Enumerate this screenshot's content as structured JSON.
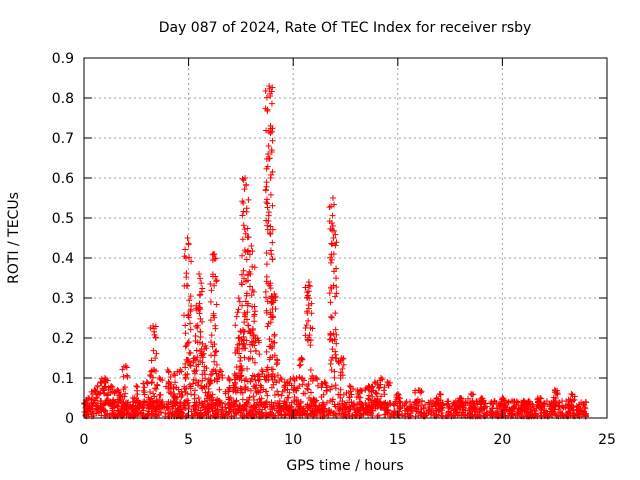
{
  "chart_data": {
    "type": "scatter",
    "title": "Day 087 of 2024, Rate Of TEC Index for receiver rsby",
    "xlabel": "GPS time / hours",
    "ylabel": "ROTI / TECUs",
    "xlim": [
      0,
      25
    ],
    "ylim": [
      0,
      0.9
    ],
    "x_ticks": [
      0,
      5,
      10,
      15,
      20,
      25
    ],
    "y_ticks": [
      0,
      0.1,
      0.2,
      0.3,
      0.4,
      0.5,
      0.6,
      0.7,
      0.8,
      0.9
    ],
    "x_tick_labels": [
      "0",
      "5",
      "10",
      "15",
      "20",
      "25"
    ],
    "y_tick_labels": [
      "0",
      "0.1",
      "0.2",
      "0.3",
      "0.4",
      "0.5",
      "0.6",
      "0.7",
      "0.8",
      "0.9"
    ],
    "grid": true,
    "marker": "+",
    "color": "#ff0000",
    "baseline": {
      "x_range": [
        0,
        24
      ],
      "typical": 0.02,
      "max": 0.04
    },
    "peaks": [
      {
        "x": 0.2,
        "y": 0.05
      },
      {
        "x": 0.5,
        "y": 0.07
      },
      {
        "x": 0.8,
        "y": 0.09
      },
      {
        "x": 1.0,
        "y": 0.1
      },
      {
        "x": 1.3,
        "y": 0.08
      },
      {
        "x": 1.6,
        "y": 0.07
      },
      {
        "x": 2.0,
        "y": 0.13
      },
      {
        "x": 2.5,
        "y": 0.08
      },
      {
        "x": 3.0,
        "y": 0.09
      },
      {
        "x": 3.3,
        "y": 0.23
      },
      {
        "x": 3.6,
        "y": 0.1
      },
      {
        "x": 4.0,
        "y": 0.12
      },
      {
        "x": 4.3,
        "y": 0.11
      },
      {
        "x": 4.6,
        "y": 0.12
      },
      {
        "x": 4.95,
        "y": 0.45
      },
      {
        "x": 5.3,
        "y": 0.15
      },
      {
        "x": 5.5,
        "y": 0.36
      },
      {
        "x": 5.8,
        "y": 0.18
      },
      {
        "x": 6.0,
        "y": 0.09
      },
      {
        "x": 6.2,
        "y": 0.41
      },
      {
        "x": 6.5,
        "y": 0.12
      },
      {
        "x": 6.9,
        "y": 0.1
      },
      {
        "x": 7.2,
        "y": 0.11
      },
      {
        "x": 7.4,
        "y": 0.3
      },
      {
        "x": 7.7,
        "y": 0.6
      },
      {
        "x": 8.0,
        "y": 0.43
      },
      {
        "x": 8.3,
        "y": 0.2
      },
      {
        "x": 8.5,
        "y": 0.12
      },
      {
        "x": 8.85,
        "y": 0.83
      },
      {
        "x": 9.1,
        "y": 0.31
      },
      {
        "x": 9.4,
        "y": 0.1
      },
      {
        "x": 9.7,
        "y": 0.09
      },
      {
        "x": 10.0,
        "y": 0.1
      },
      {
        "x": 10.4,
        "y": 0.15
      },
      {
        "x": 10.75,
        "y": 0.34
      },
      {
        "x": 11.1,
        "y": 0.1
      },
      {
        "x": 11.5,
        "y": 0.09
      },
      {
        "x": 11.9,
        "y": 0.55
      },
      {
        "x": 12.3,
        "y": 0.15
      },
      {
        "x": 12.7,
        "y": 0.08
      },
      {
        "x": 13.2,
        "y": 0.07
      },
      {
        "x": 13.6,
        "y": 0.08
      },
      {
        "x": 13.9,
        "y": 0.09
      },
      {
        "x": 14.2,
        "y": 0.1
      },
      {
        "x": 14.5,
        "y": 0.09
      },
      {
        "x": 15.0,
        "y": 0.06
      },
      {
        "x": 16.0,
        "y": 0.07
      },
      {
        "x": 17.0,
        "y": 0.06
      },
      {
        "x": 18.0,
        "y": 0.05
      },
      {
        "x": 18.5,
        "y": 0.06
      },
      {
        "x": 19.0,
        "y": 0.05
      },
      {
        "x": 20.0,
        "y": 0.05
      },
      {
        "x": 21.0,
        "y": 0.04
      },
      {
        "x": 21.8,
        "y": 0.05
      },
      {
        "x": 22.5,
        "y": 0.07
      },
      {
        "x": 23.3,
        "y": 0.06
      }
    ]
  }
}
